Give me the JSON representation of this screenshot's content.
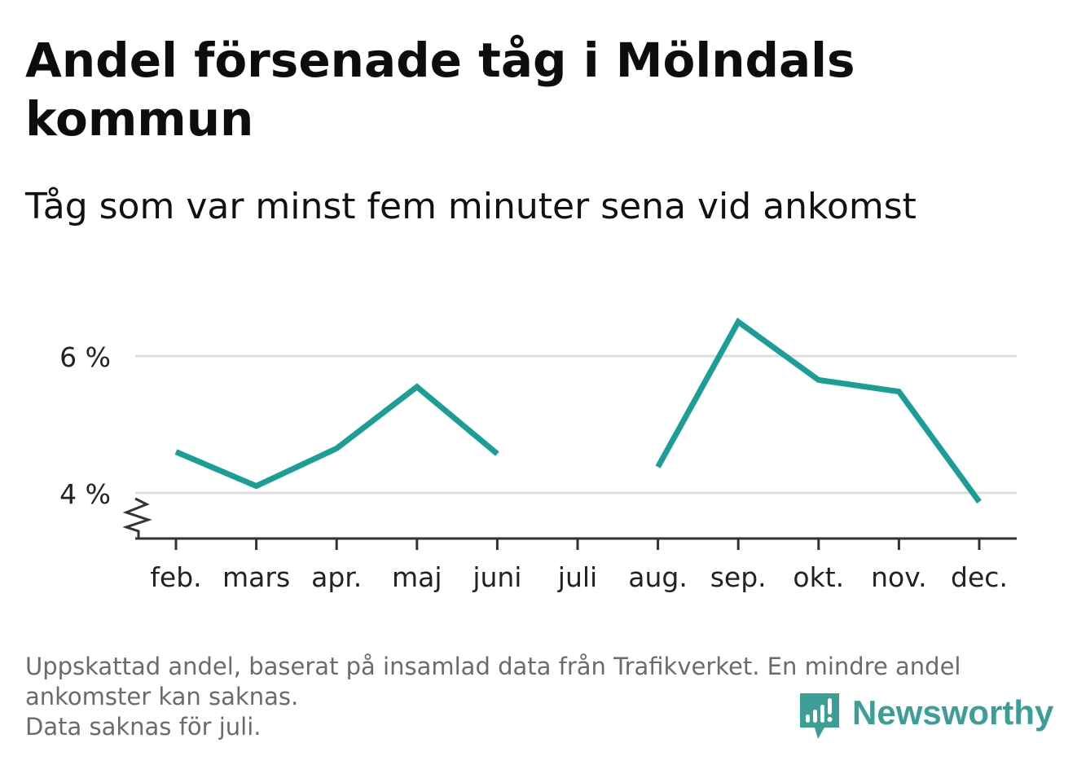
{
  "header": {
    "title": "Andel försenade tåg i Mölndals kommun",
    "subtitle": "Tåg som var minst fem minuter sena vid ankomst"
  },
  "chart_data": {
    "type": "line",
    "categories": [
      "feb.",
      "mars",
      "apr.",
      "maj",
      "juni",
      "juli",
      "aug.",
      "sep.",
      "okt.",
      "nov.",
      "dec."
    ],
    "series": [
      {
        "values": [
          4.6,
          4.1,
          4.65,
          5.55,
          4.57,
          null,
          4.38,
          6.5,
          5.65,
          5.48,
          3.87
        ]
      }
    ],
    "y_ticks": [
      {
        "value": 4,
        "label": "4 %"
      },
      {
        "value": 6,
        "label": "6 %"
      }
    ],
    "ylim": [
      3.3,
      6.8
    ],
    "y_axis_break": true,
    "grid": true,
    "colors": {
      "line": "#1a9e96",
      "grid": "#dddddd",
      "axis": "#333333"
    }
  },
  "footer": {
    "note_lines": [
      "Uppskattad andel, baserat på insamlad data från Trafikverket. En mindre andel",
      "ankomster kan saknas.",
      "Data saknas för juli."
    ],
    "logo_text": "Newsworthy",
    "logo_color": "#3d9e97"
  }
}
